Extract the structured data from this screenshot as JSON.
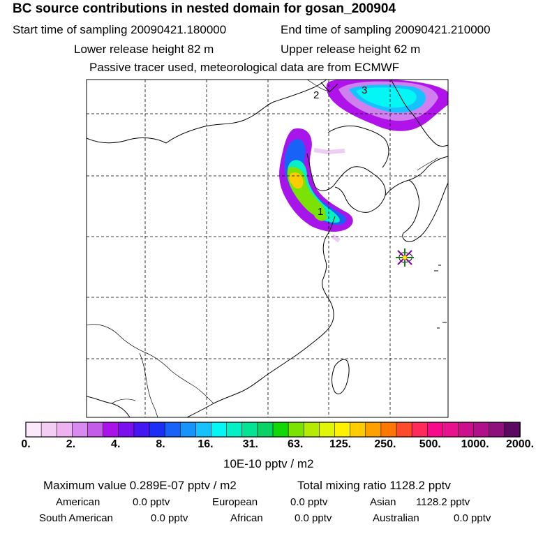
{
  "header": {
    "title": "BC  source contributions in nested domain for gosan_200904",
    "start_sampling": "Start time of sampling 20090421.180000",
    "end_sampling": "End time of sampling 20090421.210000",
    "lower_release": "Lower release height   82 m",
    "upper_release": "Upper release height   62 m",
    "tracer_note": "Passive tracer used, meteorological data are from ECMWF"
  },
  "map": {
    "markers": [
      "1",
      "2",
      "3"
    ],
    "receptor_icon": "star-marker-icon"
  },
  "colorbar": {
    "colors": [
      "#fbe8fb",
      "#f4cdf4",
      "#edb2ef",
      "#d98aee",
      "#c35ce8",
      "#aa12ea",
      "#7b10ee",
      "#4316f2",
      "#1b2ff6",
      "#1862f8",
      "#1694fb",
      "#16c2fd",
      "#05f7f5",
      "#05f0c5",
      "#04e494",
      "#08d263",
      "#12d808",
      "#7ce203",
      "#b4ea04",
      "#e1f507",
      "#fef200",
      "#fecc00",
      "#fea000",
      "#fe7700",
      "#fe4b2c",
      "#fe2a5a",
      "#f8088a",
      "#e8128e",
      "#cc0f8b",
      "#b0108a",
      "#8e107c",
      "#5a0a60"
    ],
    "ticks": [
      "0.",
      "2.",
      "4.",
      "8.",
      "16.",
      "31.",
      "63.",
      "125.",
      "250.",
      "500.",
      "1000.",
      "2000."
    ],
    "unit_label": "10E-10 pptv / m2"
  },
  "summary": {
    "max_value": "Maximum value  0.289E-07 pptv / m2",
    "total_mixing": "Total mixing ratio     1128.2 pptv",
    "american_label": "American",
    "american_value": "0.0 pptv",
    "european_label": "European",
    "european_value": "0.0 pptv",
    "asian_label": "Asian",
    "asian_value": "1128.2 pptv",
    "south_american_label": "South American",
    "south_american_value": "0.0 pptv",
    "african_label": "African",
    "african_value": "0.0 pptv",
    "australian_label": "Australian",
    "australian_value": "0.0 pptv"
  }
}
